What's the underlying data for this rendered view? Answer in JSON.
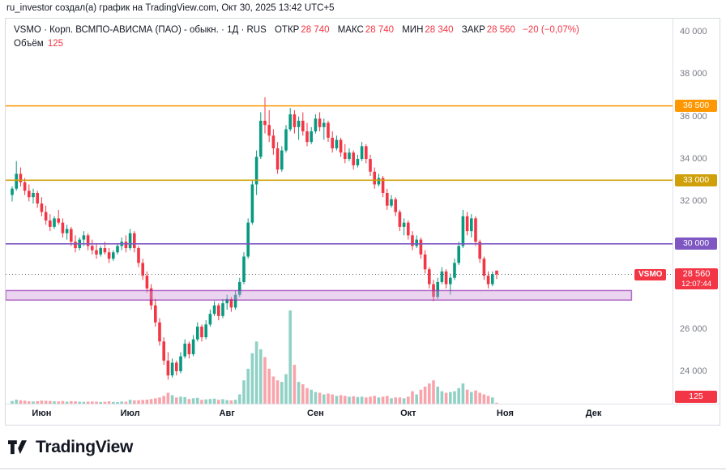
{
  "attribution": {
    "text": "ru_investor создал(а) график на TradingView.com, Окт 30, 2025 13:42 UTC+5"
  },
  "legend": {
    "symbol": "VSMO",
    "description": "· Корп. ВСМПО-АВИСМА (ПАО) - обыкн. · 1Д · RUS",
    "open_label": "ОТКР",
    "open": "28 740",
    "high_label": "МАКС",
    "high": "28 740",
    "low_label": "МИН",
    "low": "28 340",
    "close_label": "ЗАКР",
    "close": "28 560",
    "change": "−20 (−0,07%)",
    "volume_label": "Объём",
    "volume": "125"
  },
  "axis_ui": {
    "symbol_tag": "VSMO",
    "last_price": "28 560",
    "countdown": "12:07:44",
    "volume_badge": "125"
  },
  "footer": {
    "brand": "TradingView"
  },
  "chart_data": {
    "type": "candlestick",
    "title": "VSMO · Корп. ВСМПО-АВИСМА (ПАО) - обыкн. · 1Д · RUS",
    "last_bar": {
      "open": 28740,
      "high": 28740,
      "low": 28340,
      "close": 28560,
      "change": -20,
      "change_pct": -0.07,
      "volume": 125
    },
    "ylim": [
      22470,
      40610
    ],
    "up_color": "#089981",
    "down_color": "#f23645",
    "up_vol_color": "rgba(8,153,129,0.45)",
    "down_vol_color": "rgba(242,54,69,0.45)",
    "yticks": [
      {
        "v": 40000,
        "label": "40 000"
      },
      {
        "v": 38000,
        "label": "38 000"
      },
      {
        "v": 36000,
        "label": "36 000"
      },
      {
        "v": 34000,
        "label": "34 000"
      },
      {
        "v": 32000,
        "label": "32 000"
      },
      {
        "v": 30000,
        "label": "30 000"
      },
      {
        "v": 28000,
        "label": "28 000"
      },
      {
        "v": 26000,
        "label": "26 000"
      },
      {
        "v": 24000,
        "label": "24 000"
      }
    ],
    "months": [
      {
        "label": "Июн",
        "i": 7
      },
      {
        "label": "Июл",
        "i": 28
      },
      {
        "label": "Авг",
        "i": 51
      },
      {
        "label": "Сен",
        "i": 72
      },
      {
        "label": "Окт",
        "i": 94
      },
      {
        "label": "Ноя",
        "i": 117
      },
      {
        "label": "Дек",
        "i": 138
      }
    ],
    "levels": [
      {
        "value": 36500,
        "label": "36 500",
        "color": "#ff9800"
      },
      {
        "value": 33000,
        "label": "33 000",
        "color": "#cfa009"
      },
      {
        "value": 30000,
        "label": "30 000",
        "color": "#7e57c2"
      }
    ],
    "band": {
      "top": 27800,
      "bottom": 27350,
      "fill": "rgba(206,147,216,0.4)",
      "border": "rgba(142,36,170,0.65)",
      "right_edge_index": 147
    },
    "last_price_line": 28560,
    "candles_format": [
      "open",
      "high",
      "low",
      "close",
      "volume"
    ],
    "candles": [
      [
        32300,
        32700,
        32000,
        32600,
        350
      ],
      [
        32600,
        33900,
        32500,
        33300,
        520
      ],
      [
        33300,
        33600,
        32700,
        32900,
        430
      ],
      [
        32900,
        33100,
        32300,
        32500,
        380
      ],
      [
        32500,
        32800,
        32000,
        32200,
        300
      ],
      [
        32200,
        32600,
        31900,
        32400,
        280
      ],
      [
        32400,
        32500,
        31700,
        31900,
        330
      ],
      [
        31900,
        32200,
        31300,
        31500,
        400
      ],
      [
        31500,
        31800,
        30900,
        31100,
        380
      ],
      [
        31100,
        31400,
        30600,
        30800,
        350
      ],
      [
        30800,
        31300,
        30700,
        31200,
        300
      ],
      [
        31200,
        31600,
        30900,
        31000,
        280
      ],
      [
        31000,
        31200,
        30300,
        30500,
        340
      ],
      [
        30500,
        30900,
        30200,
        30700,
        260
      ],
      [
        30700,
        30800,
        29900,
        30100,
        320
      ],
      [
        30100,
        30400,
        29600,
        29800,
        300
      ],
      [
        29800,
        30300,
        29700,
        30200,
        250
      ],
      [
        30200,
        30600,
        29900,
        30400,
        240
      ],
      [
        30400,
        30500,
        29700,
        29900,
        260
      ],
      [
        29900,
        30200,
        29500,
        29700,
        280
      ],
      [
        29700,
        30000,
        29300,
        29500,
        260
      ],
      [
        29500,
        29900,
        29400,
        29800,
        220
      ],
      [
        29800,
        30100,
        29500,
        29600,
        240
      ],
      [
        29600,
        29800,
        29100,
        29300,
        300
      ],
      [
        29300,
        29700,
        29200,
        29600,
        230
      ],
      [
        29600,
        30000,
        29500,
        29900,
        210
      ],
      [
        29900,
        30300,
        29700,
        30100,
        280
      ],
      [
        30100,
        30400,
        29600,
        29800,
        250
      ],
      [
        29800,
        30700,
        29700,
        30500,
        500
      ],
      [
        30500,
        30600,
        29600,
        29800,
        420
      ],
      [
        29800,
        29900,
        28900,
        29100,
        450
      ],
      [
        29100,
        29300,
        28300,
        28500,
        480
      ],
      [
        28500,
        28700,
        27700,
        27900,
        520
      ],
      [
        27900,
        28100,
        26900,
        27100,
        600
      ],
      [
        27100,
        27400,
        26100,
        26300,
        700
      ],
      [
        26300,
        26500,
        25200,
        25400,
        800
      ],
      [
        25400,
        25600,
        24300,
        24500,
        1000
      ],
      [
        24500,
        24900,
        23600,
        23800,
        1400
      ],
      [
        23800,
        24600,
        23700,
        24400,
        1100
      ],
      [
        24400,
        24500,
        23800,
        24000,
        800
      ],
      [
        24000,
        24900,
        23900,
        24700,
        900
      ],
      [
        24700,
        25500,
        24600,
        25300,
        850
      ],
      [
        25300,
        25400,
        24600,
        24800,
        600
      ],
      [
        24800,
        25700,
        24700,
        25500,
        700
      ],
      [
        25500,
        26300,
        25400,
        26100,
        750
      ],
      [
        26100,
        26200,
        25400,
        25600,
        500
      ],
      [
        25600,
        26400,
        25500,
        26200,
        550
      ],
      [
        26200,
        26900,
        26100,
        26700,
        600
      ],
      [
        26700,
        27300,
        26600,
        27100,
        650
      ],
      [
        27100,
        27200,
        26400,
        26600,
        500
      ],
      [
        26600,
        27400,
        26500,
        27200,
        580
      ],
      [
        27200,
        27600,
        26900,
        27400,
        450
      ],
      [
        27400,
        27500,
        26800,
        27000,
        420
      ],
      [
        27000,
        27800,
        26900,
        27600,
        500
      ],
      [
        27600,
        28400,
        27500,
        28200,
        1200
      ],
      [
        28200,
        29600,
        28100,
        29400,
        3000
      ],
      [
        29400,
        31200,
        29300,
        31000,
        4500
      ],
      [
        31000,
        33000,
        30900,
        32800,
        6500
      ],
      [
        32800,
        34400,
        32300,
        34100,
        8000
      ],
      [
        34100,
        36200,
        34000,
        35800,
        7000
      ],
      [
        35800,
        36900,
        35200,
        35600,
        6000
      ],
      [
        35600,
        36300,
        34800,
        35100,
        4500
      ],
      [
        35100,
        35400,
        34200,
        34500,
        3500
      ],
      [
        34500,
        34800,
        33300,
        33500,
        3000
      ],
      [
        33500,
        34600,
        33400,
        34400,
        2800
      ],
      [
        34400,
        35600,
        34300,
        35400,
        3800
      ],
      [
        35400,
        36400,
        35300,
        36100,
        12000
      ],
      [
        36100,
        36300,
        35200,
        35500,
        5000
      ],
      [
        35500,
        36000,
        34900,
        35800,
        2800
      ],
      [
        35800,
        36200,
        35100,
        35300,
        2500
      ],
      [
        35300,
        35700,
        34600,
        34800,
        2000
      ],
      [
        34800,
        35500,
        34700,
        35300,
        1800
      ],
      [
        35300,
        36100,
        35200,
        35900,
        1500
      ],
      [
        35900,
        36200,
        35300,
        35500,
        1400
      ],
      [
        35500,
        35900,
        34900,
        35700,
        1200
      ],
      [
        35700,
        35800,
        34800,
        35000,
        1300
      ],
      [
        35000,
        35300,
        34300,
        34500,
        1200
      ],
      [
        34500,
        35100,
        34400,
        34900,
        1000
      ],
      [
        34900,
        35000,
        34100,
        34300,
        1100
      ],
      [
        34300,
        34700,
        33800,
        34000,
        1000
      ],
      [
        34000,
        34500,
        33900,
        34300,
        900
      ],
      [
        34300,
        34400,
        33500,
        33700,
        950
      ],
      [
        33700,
        34200,
        33600,
        34000,
        850
      ],
      [
        34000,
        34800,
        33900,
        34600,
        900
      ],
      [
        34600,
        34700,
        33800,
        34000,
        800
      ],
      [
        34000,
        34200,
        33200,
        33400,
        900
      ],
      [
        33400,
        33600,
        32600,
        32800,
        1000
      ],
      [
        32800,
        33300,
        32700,
        33100,
        800
      ],
      [
        33100,
        33200,
        32200,
        32400,
        900
      ],
      [
        32400,
        32600,
        31600,
        31800,
        1000
      ],
      [
        31800,
        32300,
        31700,
        32100,
        700
      ],
      [
        32100,
        32200,
        31300,
        31500,
        800
      ],
      [
        31500,
        31600,
        30600,
        30800,
        800
      ],
      [
        30800,
        31200,
        30400,
        31000,
        700
      ],
      [
        31000,
        31100,
        30200,
        30400,
        900
      ],
      [
        30400,
        30600,
        29700,
        29900,
        1600
      ],
      [
        29900,
        30400,
        29800,
        30200,
        1200
      ],
      [
        30200,
        30300,
        29300,
        29500,
        1800
      ],
      [
        29500,
        29700,
        28600,
        28800,
        2200
      ],
      [
        28800,
        28900,
        27900,
        28100,
        2600
      ],
      [
        28100,
        28300,
        27300,
        27500,
        3000
      ],
      [
        27500,
        28400,
        27400,
        28200,
        2200
      ],
      [
        28200,
        28900,
        28100,
        28700,
        1600
      ],
      [
        28700,
        28800,
        27900,
        28100,
        1400
      ],
      [
        28100,
        28600,
        27600,
        28400,
        1500
      ],
      [
        28400,
        29300,
        28300,
        29100,
        1600
      ],
      [
        29100,
        30100,
        29000,
        29900,
        2000
      ],
      [
        29900,
        31600,
        29800,
        31300,
        2600
      ],
      [
        31300,
        31500,
        30400,
        30600,
        1800
      ],
      [
        30600,
        31400,
        30300,
        31200,
        1500
      ],
      [
        31200,
        31300,
        29900,
        30100,
        1700
      ],
      [
        30100,
        30200,
        29100,
        29300,
        1400
      ],
      [
        29300,
        29400,
        28300,
        28500,
        1200
      ],
      [
        28500,
        28700,
        27900,
        28100,
        1000
      ],
      [
        28100,
        28700,
        28000,
        28580,
        800
      ],
      [
        28740,
        28740,
        28340,
        28560,
        125
      ]
    ]
  }
}
